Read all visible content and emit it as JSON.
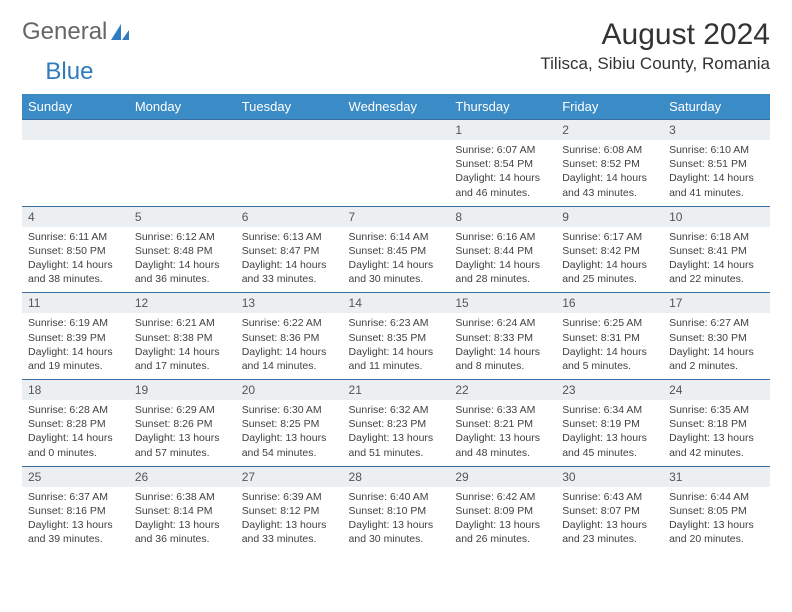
{
  "brand": {
    "part1": "General",
    "part2": "Blue"
  },
  "title": "August 2024",
  "location": "Tilisca, Sibiu County, Romania",
  "colors": {
    "header_bg": "#3b8bc6",
    "header_fg": "#ffffff",
    "daynum_bg": "#eceff1",
    "rule": "#3b6ea0",
    "brand_blue": "#2f7bbf",
    "text": "#414141"
  },
  "dow": [
    "Sunday",
    "Monday",
    "Tuesday",
    "Wednesday",
    "Thursday",
    "Friday",
    "Saturday"
  ],
  "weeks": [
    [
      null,
      null,
      null,
      null,
      {
        "n": "1",
        "sunrise": "6:07 AM",
        "sunset": "8:54 PM",
        "daylight": "14 hours and 46 minutes."
      },
      {
        "n": "2",
        "sunrise": "6:08 AM",
        "sunset": "8:52 PM",
        "daylight": "14 hours and 43 minutes."
      },
      {
        "n": "3",
        "sunrise": "6:10 AM",
        "sunset": "8:51 PM",
        "daylight": "14 hours and 41 minutes."
      }
    ],
    [
      {
        "n": "4",
        "sunrise": "6:11 AM",
        "sunset": "8:50 PM",
        "daylight": "14 hours and 38 minutes."
      },
      {
        "n": "5",
        "sunrise": "6:12 AM",
        "sunset": "8:48 PM",
        "daylight": "14 hours and 36 minutes."
      },
      {
        "n": "6",
        "sunrise": "6:13 AM",
        "sunset": "8:47 PM",
        "daylight": "14 hours and 33 minutes."
      },
      {
        "n": "7",
        "sunrise": "6:14 AM",
        "sunset": "8:45 PM",
        "daylight": "14 hours and 30 minutes."
      },
      {
        "n": "8",
        "sunrise": "6:16 AM",
        "sunset": "8:44 PM",
        "daylight": "14 hours and 28 minutes."
      },
      {
        "n": "9",
        "sunrise": "6:17 AM",
        "sunset": "8:42 PM",
        "daylight": "14 hours and 25 minutes."
      },
      {
        "n": "10",
        "sunrise": "6:18 AM",
        "sunset": "8:41 PM",
        "daylight": "14 hours and 22 minutes."
      }
    ],
    [
      {
        "n": "11",
        "sunrise": "6:19 AM",
        "sunset": "8:39 PM",
        "daylight": "14 hours and 19 minutes."
      },
      {
        "n": "12",
        "sunrise": "6:21 AM",
        "sunset": "8:38 PM",
        "daylight": "14 hours and 17 minutes."
      },
      {
        "n": "13",
        "sunrise": "6:22 AM",
        "sunset": "8:36 PM",
        "daylight": "14 hours and 14 minutes."
      },
      {
        "n": "14",
        "sunrise": "6:23 AM",
        "sunset": "8:35 PM",
        "daylight": "14 hours and 11 minutes."
      },
      {
        "n": "15",
        "sunrise": "6:24 AM",
        "sunset": "8:33 PM",
        "daylight": "14 hours and 8 minutes."
      },
      {
        "n": "16",
        "sunrise": "6:25 AM",
        "sunset": "8:31 PM",
        "daylight": "14 hours and 5 minutes."
      },
      {
        "n": "17",
        "sunrise": "6:27 AM",
        "sunset": "8:30 PM",
        "daylight": "14 hours and 2 minutes."
      }
    ],
    [
      {
        "n": "18",
        "sunrise": "6:28 AM",
        "sunset": "8:28 PM",
        "daylight": "14 hours and 0 minutes."
      },
      {
        "n": "19",
        "sunrise": "6:29 AM",
        "sunset": "8:26 PM",
        "daylight": "13 hours and 57 minutes."
      },
      {
        "n": "20",
        "sunrise": "6:30 AM",
        "sunset": "8:25 PM",
        "daylight": "13 hours and 54 minutes."
      },
      {
        "n": "21",
        "sunrise": "6:32 AM",
        "sunset": "8:23 PM",
        "daylight": "13 hours and 51 minutes."
      },
      {
        "n": "22",
        "sunrise": "6:33 AM",
        "sunset": "8:21 PM",
        "daylight": "13 hours and 48 minutes."
      },
      {
        "n": "23",
        "sunrise": "6:34 AM",
        "sunset": "8:19 PM",
        "daylight": "13 hours and 45 minutes."
      },
      {
        "n": "24",
        "sunrise": "6:35 AM",
        "sunset": "8:18 PM",
        "daylight": "13 hours and 42 minutes."
      }
    ],
    [
      {
        "n": "25",
        "sunrise": "6:37 AM",
        "sunset": "8:16 PM",
        "daylight": "13 hours and 39 minutes."
      },
      {
        "n": "26",
        "sunrise": "6:38 AM",
        "sunset": "8:14 PM",
        "daylight": "13 hours and 36 minutes."
      },
      {
        "n": "27",
        "sunrise": "6:39 AM",
        "sunset": "8:12 PM",
        "daylight": "13 hours and 33 minutes."
      },
      {
        "n": "28",
        "sunrise": "6:40 AM",
        "sunset": "8:10 PM",
        "daylight": "13 hours and 30 minutes."
      },
      {
        "n": "29",
        "sunrise": "6:42 AM",
        "sunset": "8:09 PM",
        "daylight": "13 hours and 26 minutes."
      },
      {
        "n": "30",
        "sunrise": "6:43 AM",
        "sunset": "8:07 PM",
        "daylight": "13 hours and 23 minutes."
      },
      {
        "n": "31",
        "sunrise": "6:44 AM",
        "sunset": "8:05 PM",
        "daylight": "13 hours and 20 minutes."
      }
    ]
  ],
  "labels": {
    "sunrise": "Sunrise: ",
    "sunset": "Sunset: ",
    "daylight": "Daylight: "
  }
}
